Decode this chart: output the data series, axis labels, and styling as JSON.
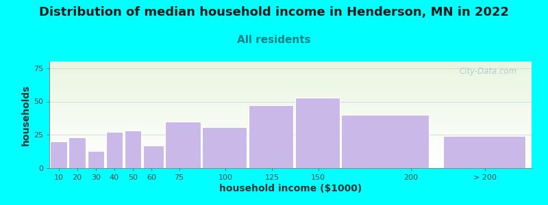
{
  "title": "Distribution of median household income in Henderson, MN in 2022",
  "subtitle": "All residents",
  "xlabel": "household income ($1000)",
  "ylabel": "households",
  "bar_labels": [
    "10",
    "20",
    "30",
    "40",
    "50",
    "60",
    "75",
    "100",
    "125",
    "150",
    "200",
    "> 200"
  ],
  "bar_values": [
    20,
    23,
    13,
    27,
    28,
    17,
    35,
    31,
    47,
    53,
    40,
    24
  ],
  "bar_color": "#c9b8e8",
  "bar_edgecolor": "#ffffff",
  "ylim": [
    0,
    80
  ],
  "yticks": [
    0,
    25,
    50,
    75
  ],
  "background_color": "#00ffff",
  "plot_bg_top_color": "#e8f5e0",
  "plot_bg_bottom_color": "#ffffff",
  "title_fontsize": 13,
  "subtitle_fontsize": 11,
  "title_color": "#1a1a1a",
  "subtitle_color": "#008080",
  "axis_label_fontsize": 10,
  "tick_fontsize": 8,
  "watermark_text": "City-Data.com",
  "watermark_color": "#a8c4cc",
  "grid_color": "#d8d8d8",
  "tick_positions": [
    10,
    20,
    30,
    40,
    50,
    60,
    75,
    100,
    125,
    150,
    200,
    240
  ],
  "bar_lefts": [
    5.5,
    15.5,
    25.5,
    35.5,
    45.5,
    55.5,
    67.5,
    87.5,
    112.5,
    137.5,
    162.5,
    217.5
  ],
  "bar_widths": [
    9,
    9,
    9,
    9,
    9,
    11,
    19,
    24,
    24,
    24,
    47,
    44
  ],
  "xlim": [
    5,
    265
  ]
}
